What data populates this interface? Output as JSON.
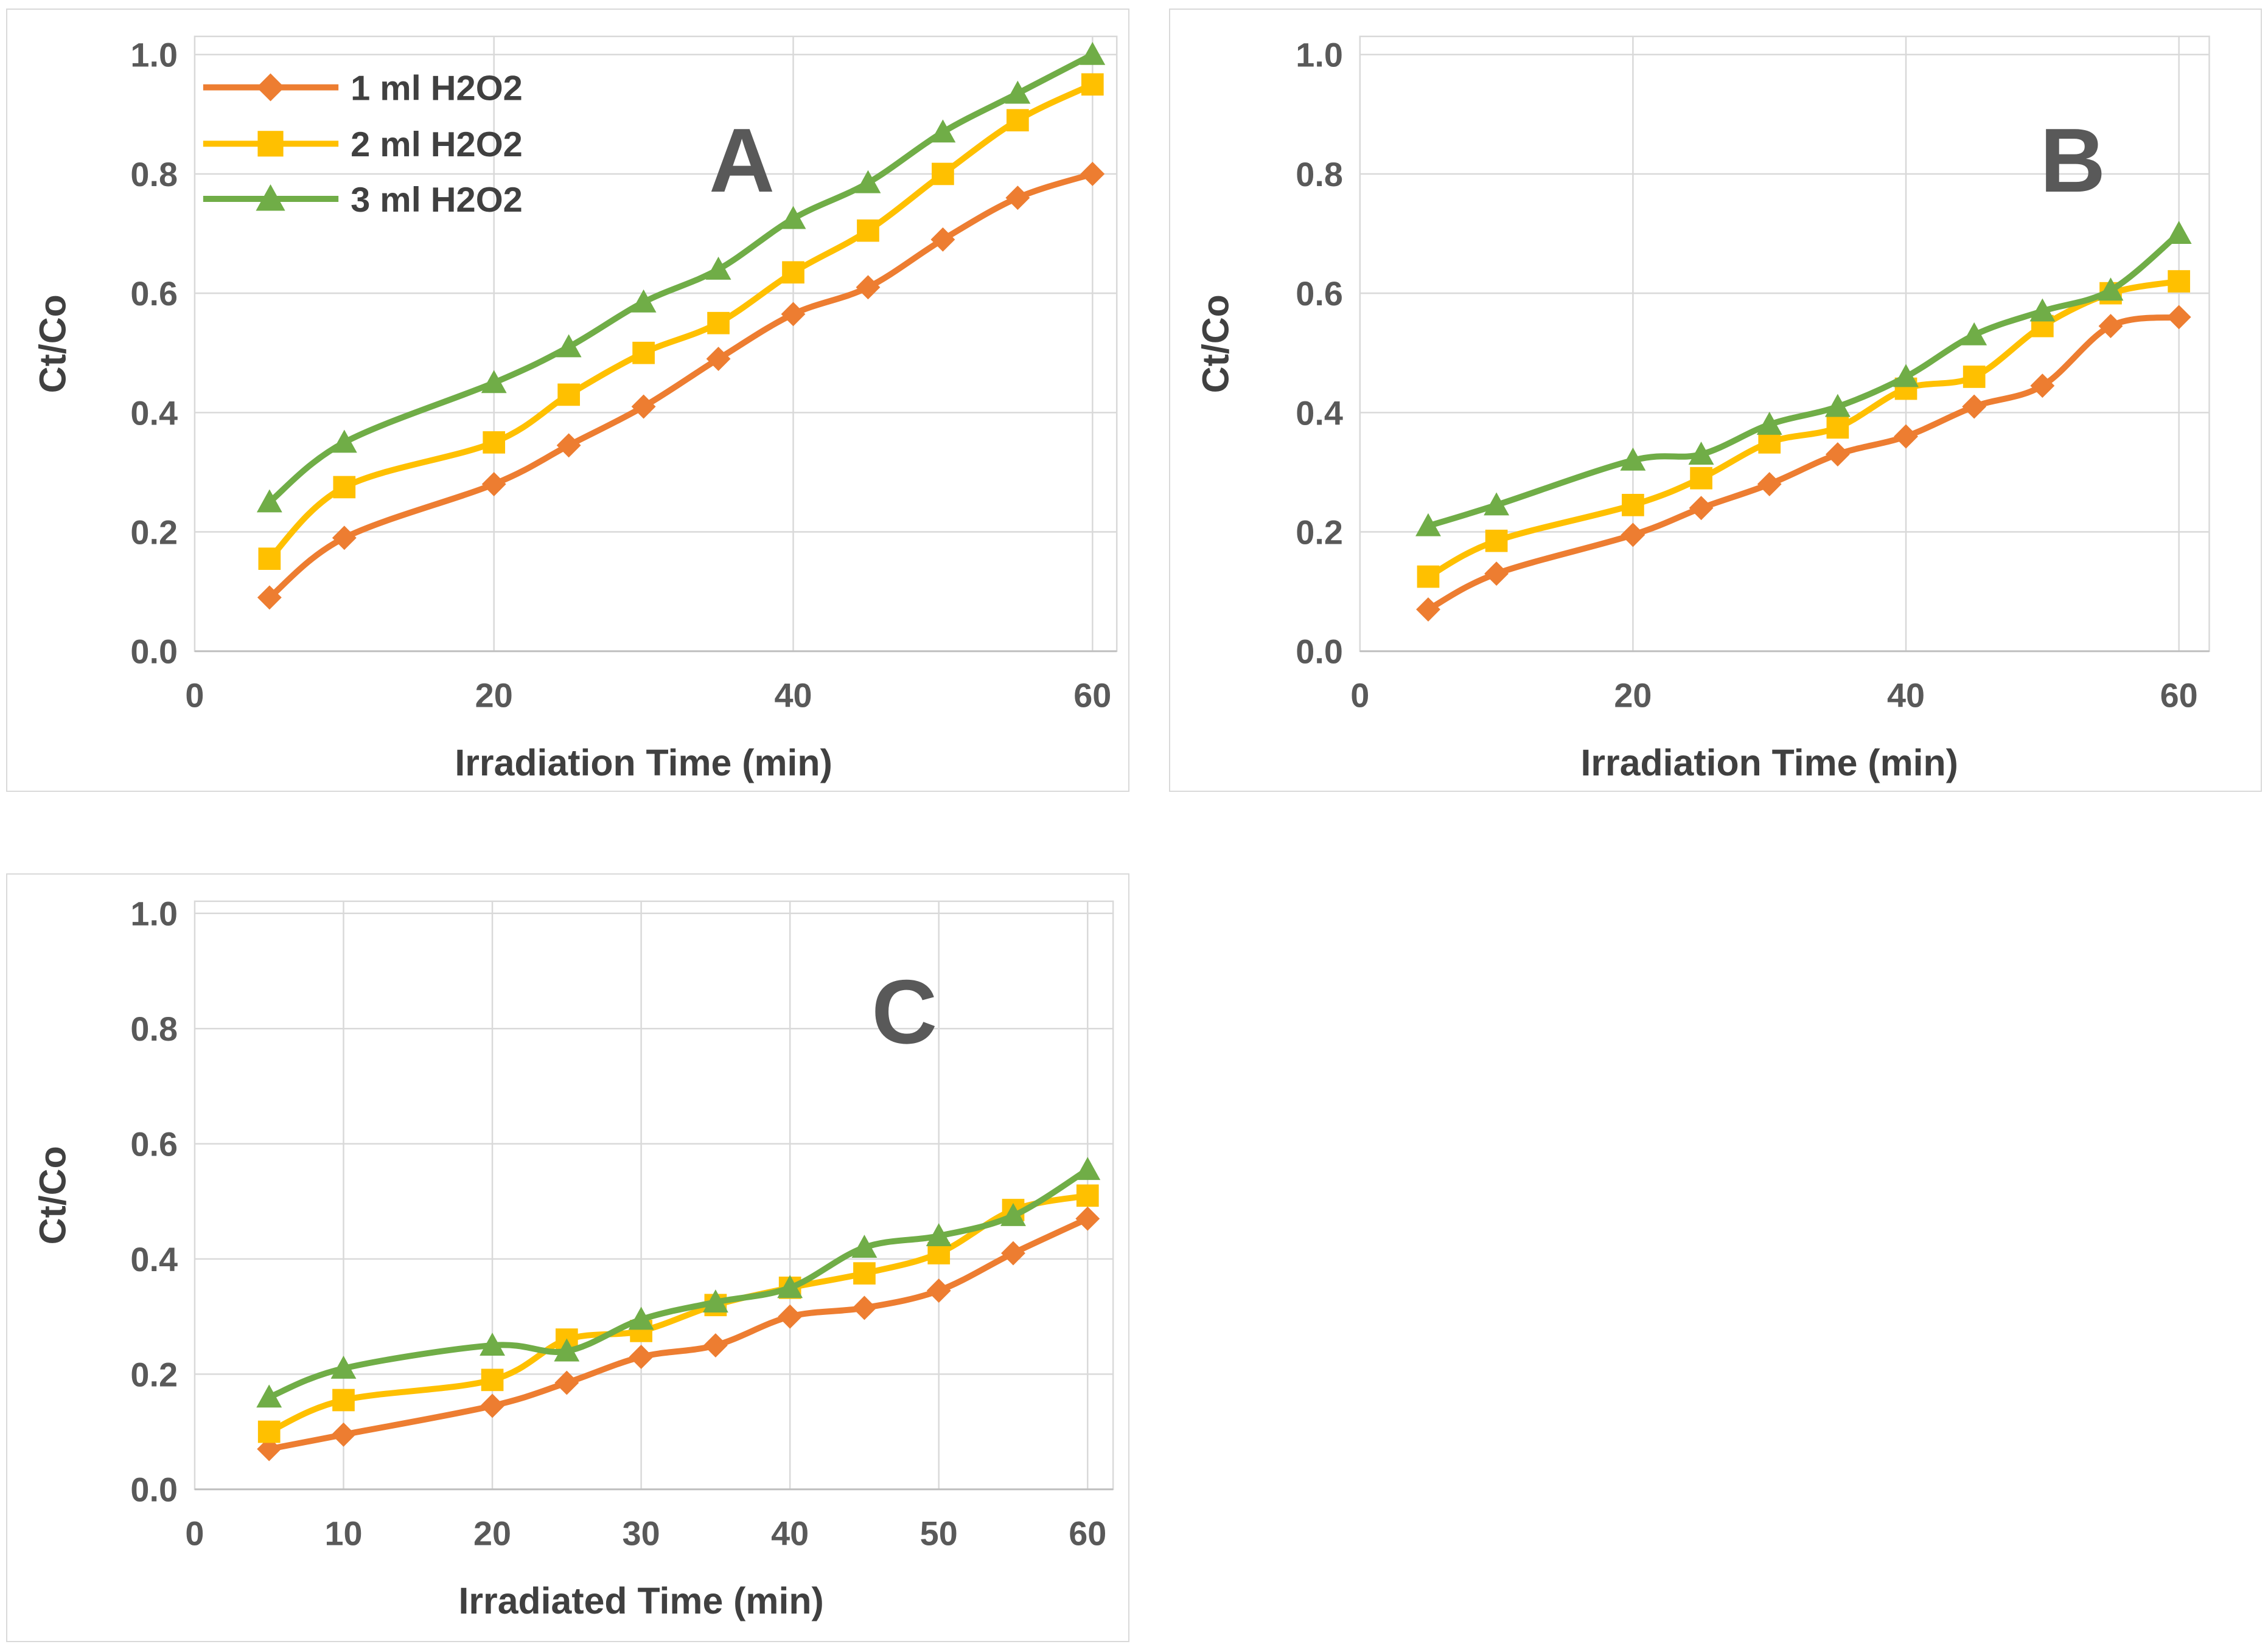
{
  "colors": {
    "series_1ml": "#ED7D31",
    "series_2ml": "#FFC000",
    "series_3ml": "#70AD47",
    "gridline": "#D9D9D9",
    "axis_line": "#BFBFBF",
    "tick_text": "#595959",
    "title_text": "#404040",
    "panel_letter": "#595959",
    "panel_border": "#D9D9D9",
    "background": "#FFFFFF"
  },
  "chart_data": [
    {
      "type": "line",
      "panel_label": "A",
      "xlabel": "Irradiation Time (min)",
      "ylabel": "Ct/Co",
      "xlim": [
        0,
        62
      ],
      "ylim": [
        0,
        1.0
      ],
      "xticks": [
        0,
        20,
        40,
        60
      ],
      "xtick_labels": [
        "0",
        "20",
        "40",
        "60"
      ],
      "yticks": [
        0,
        0.2,
        0.4,
        0.6,
        0.8,
        1.0
      ],
      "ytick_labels": [
        "0.0",
        "0.2",
        "0.4",
        "0.6",
        "0.8",
        "1.0"
      ],
      "grid": true,
      "legend_visible": true,
      "legend_position": "top-left",
      "x": [
        5,
        10,
        20,
        25,
        30,
        35,
        40,
        45,
        50,
        55,
        60
      ],
      "series": [
        {
          "name": "1 ml H2O2",
          "marker": "diamond",
          "values": [
            0.09,
            0.19,
            0.28,
            0.345,
            0.41,
            0.49,
            0.565,
            0.61,
            0.69,
            0.76,
            0.8
          ]
        },
        {
          "name": "2 ml H2O2",
          "marker": "square",
          "values": [
            0.155,
            0.275,
            0.35,
            0.43,
            0.5,
            0.55,
            0.635,
            0.705,
            0.8,
            0.89,
            0.95
          ]
        },
        {
          "name": "3 ml H2O2",
          "marker": "triangle",
          "values": [
            0.25,
            0.35,
            0.45,
            0.51,
            0.585,
            0.64,
            0.725,
            0.785,
            0.87,
            0.935,
            1.0
          ]
        }
      ]
    },
    {
      "type": "line",
      "panel_label": "B",
      "xlabel": "Irradiation Time (min)",
      "ylabel": "Ct/Co",
      "xlim": [
        0,
        62
      ],
      "ylim": [
        0,
        1.0
      ],
      "xticks": [
        0,
        20,
        40,
        60
      ],
      "xtick_labels": [
        "0",
        "20",
        "40",
        "60"
      ],
      "yticks": [
        0,
        0.2,
        0.4,
        0.6,
        0.8,
        1.0
      ],
      "ytick_labels": [
        "0.0",
        "0.2",
        "0.4",
        "0.6",
        "0.8",
        "1.0"
      ],
      "grid": true,
      "legend_visible": false,
      "x": [
        5,
        10,
        20,
        25,
        30,
        35,
        40,
        45,
        50,
        55,
        60
      ],
      "series": [
        {
          "name": "1 ml H2O2",
          "marker": "diamond",
          "values": [
            0.07,
            0.13,
            0.195,
            0.24,
            0.28,
            0.33,
            0.36,
            0.41,
            0.445,
            0.545,
            0.56
          ]
        },
        {
          "name": "2 ml H2O2",
          "marker": "square",
          "values": [
            0.125,
            0.185,
            0.245,
            0.29,
            0.35,
            0.375,
            0.44,
            0.46,
            0.545,
            0.6,
            0.62
          ]
        },
        {
          "name": "3 ml H2O2",
          "marker": "triangle",
          "values": [
            0.21,
            0.245,
            0.32,
            0.33,
            0.38,
            0.41,
            0.46,
            0.53,
            0.57,
            0.605,
            0.7
          ]
        }
      ]
    },
    {
      "type": "line",
      "panel_label": "C",
      "xlabel": "Irradiated Time (min)",
      "ylabel": "Ct/Co",
      "xlim": [
        0,
        62
      ],
      "ylim": [
        0,
        1.0
      ],
      "xticks": [
        0,
        10,
        20,
        30,
        40,
        50,
        60
      ],
      "xtick_labels": [
        "0",
        "10",
        "20",
        "30",
        "40",
        "50",
        "60"
      ],
      "yticks": [
        0,
        0.2,
        0.4,
        0.6,
        0.8,
        1.0
      ],
      "ytick_labels": [
        "0.0",
        "0.2",
        "0.4",
        "0.6",
        "0.8",
        "1.0"
      ],
      "grid": true,
      "legend_visible": false,
      "x": [
        5,
        10,
        20,
        25,
        30,
        35,
        40,
        45,
        50,
        55,
        60
      ],
      "series": [
        {
          "name": "1 ml H2O2",
          "marker": "diamond",
          "values": [
            0.07,
            0.095,
            0.145,
            0.185,
            0.23,
            0.25,
            0.3,
            0.315,
            0.345,
            0.41,
            0.47
          ]
        },
        {
          "name": "2 ml H2O2",
          "marker": "square",
          "values": [
            0.1,
            0.155,
            0.19,
            0.26,
            0.275,
            0.32,
            0.35,
            0.375,
            0.41,
            0.485,
            0.51
          ]
        },
        {
          "name": "3 ml H2O2",
          "marker": "triangle",
          "values": [
            0.16,
            0.21,
            0.25,
            0.24,
            0.295,
            0.325,
            0.35,
            0.42,
            0.44,
            0.475,
            0.555
          ]
        }
      ]
    }
  ]
}
